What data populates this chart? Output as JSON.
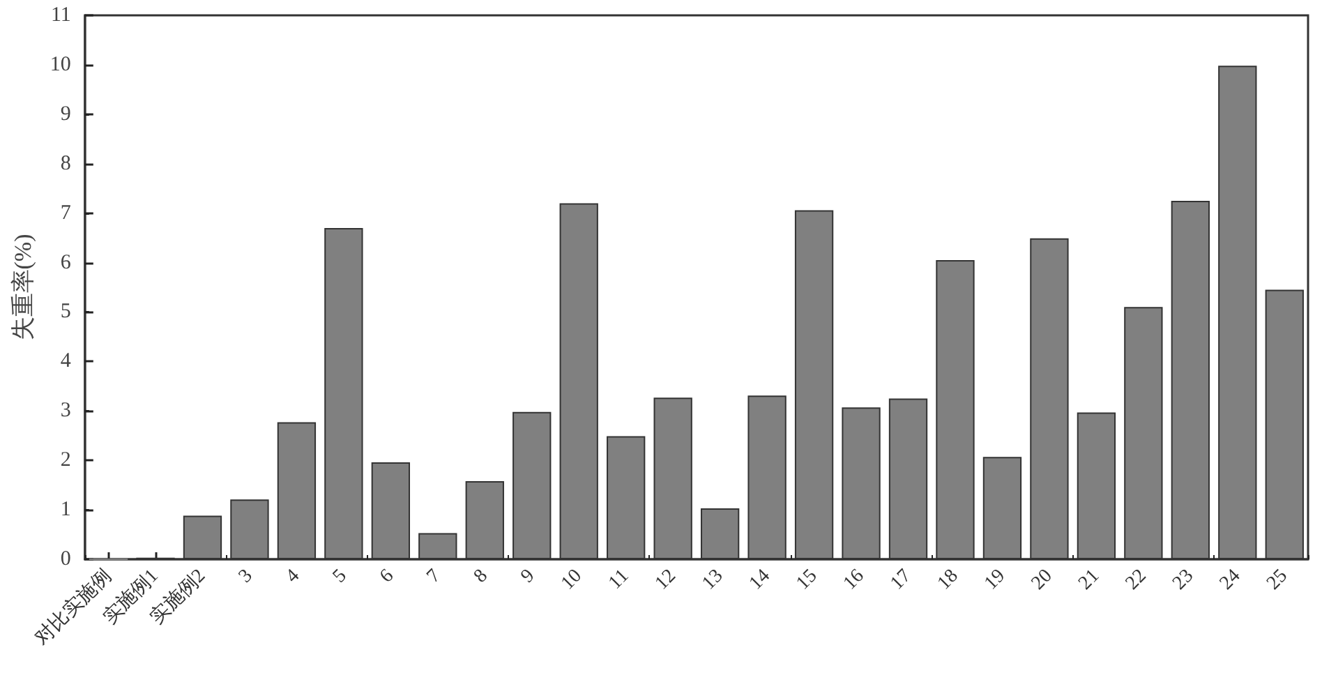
{
  "chart_data": {
    "type": "bar",
    "ylabel": "失重率(%)",
    "categories": [
      "对比实施例",
      "实施例1",
      "实施例2",
      "3",
      "4",
      "5",
      "6",
      "7",
      "8",
      "9",
      "10",
      "11",
      "12",
      "13",
      "14",
      "15",
      "16",
      "17",
      "18",
      "19",
      "20",
      "21",
      "22",
      "23",
      "24",
      "25"
    ],
    "values": [
      0,
      0.03,
      0.88,
      1.21,
      2.77,
      6.7,
      1.96,
      0.53,
      1.58,
      2.98,
      7.2,
      2.49,
      3.27,
      1.03,
      3.31,
      7.06,
      3.07,
      3.25,
      6.05,
      2.07,
      6.49,
      2.97,
      5.1,
      7.25,
      9.98,
      5.45
    ],
    "color": "#808080",
    "ylim": [
      0,
      11
    ],
    "yticks": [
      0,
      1,
      2,
      3,
      4,
      5,
      6,
      7,
      8,
      9,
      10,
      11
    ],
    "grid": false
  }
}
